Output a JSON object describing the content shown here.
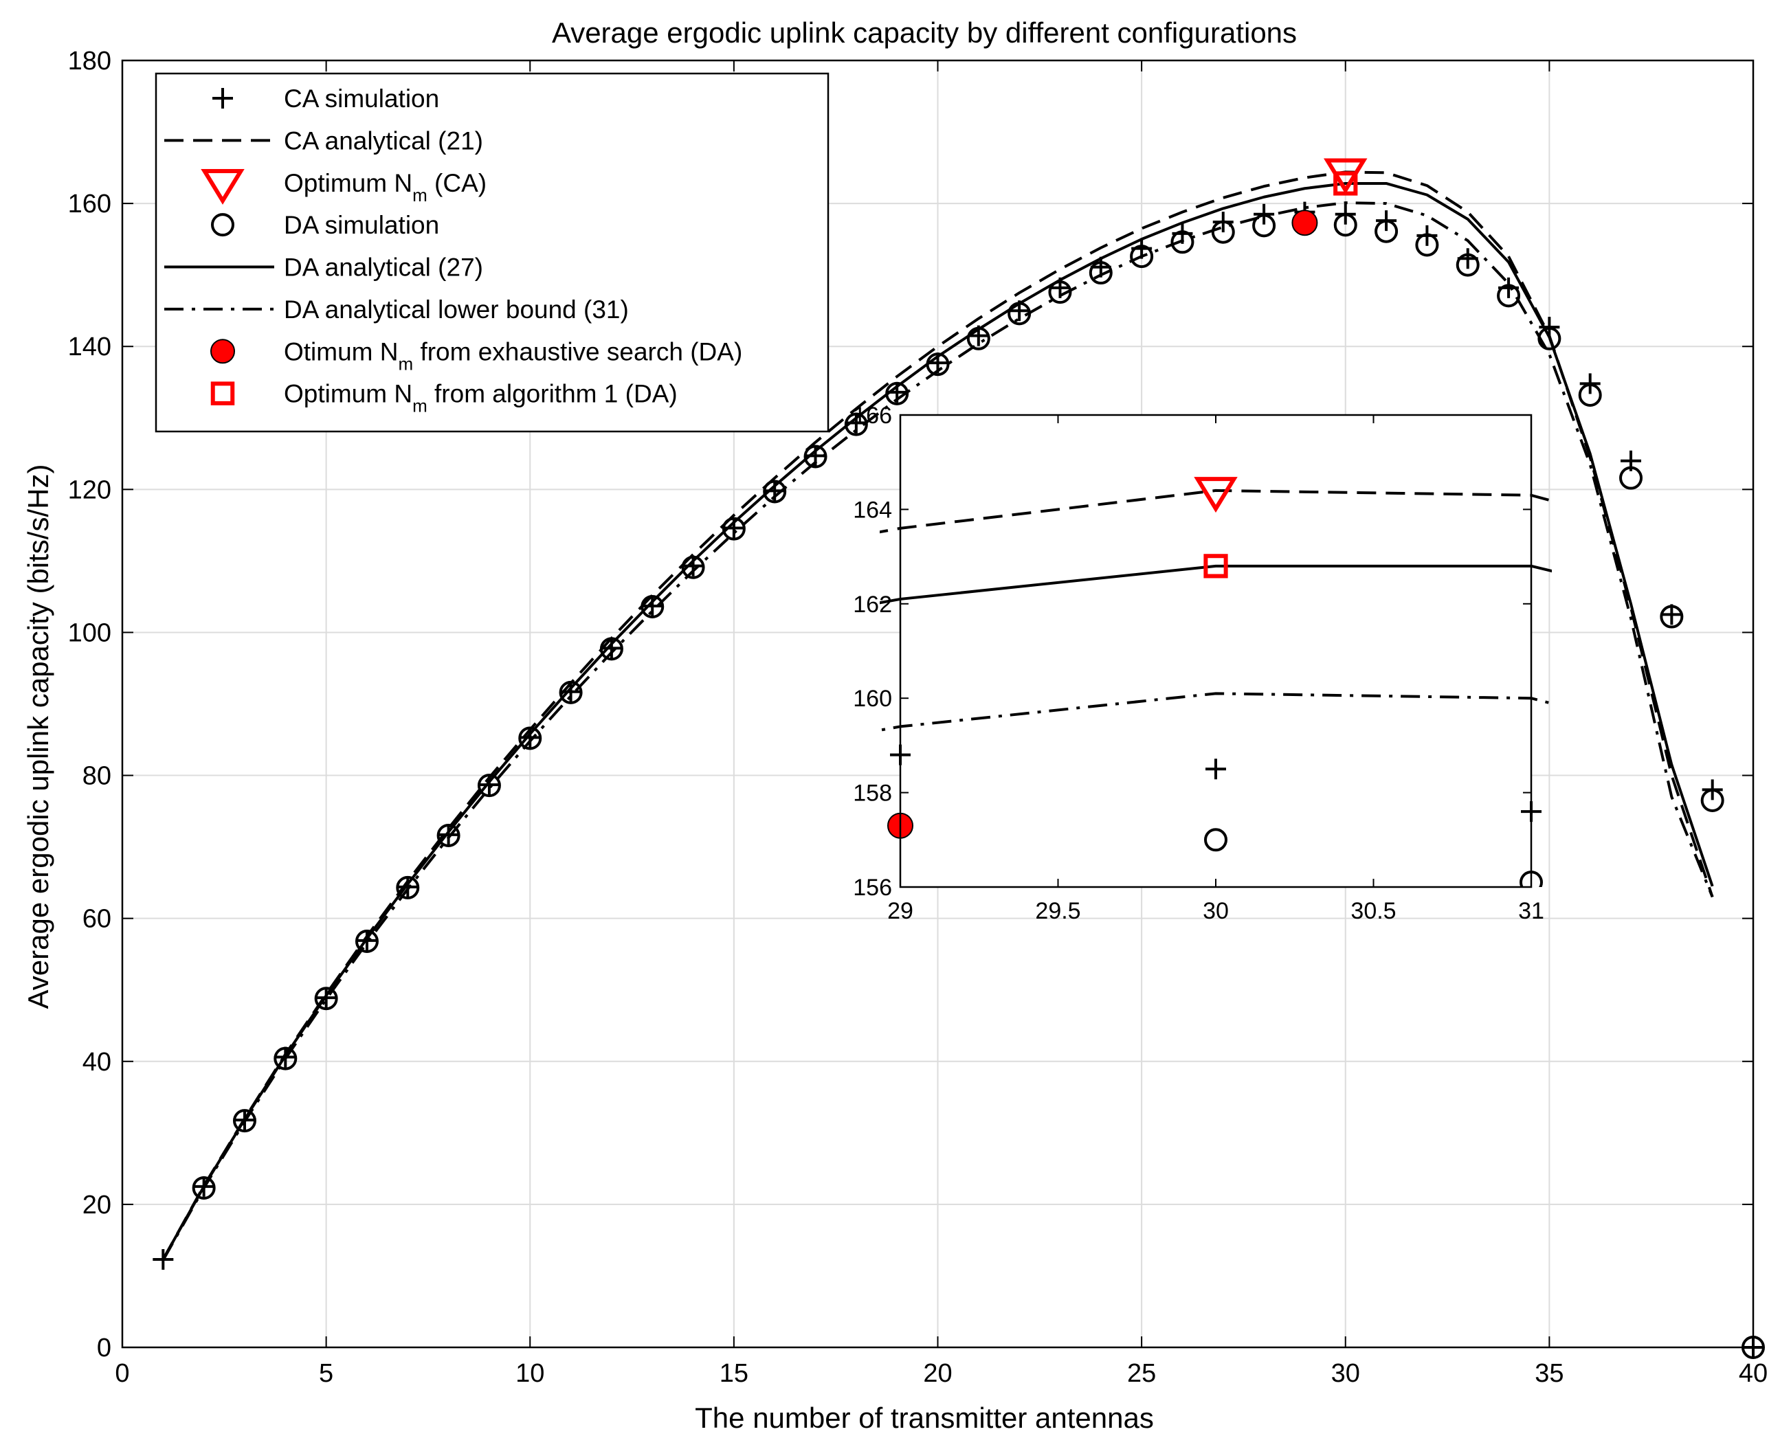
{
  "colors": {
    "red": "#ff0000",
    "black": "#000000",
    "grid": "#dcdcdc"
  },
  "chart_data": {
    "type": "line",
    "title": "Average ergodic uplink capacity by different configurations",
    "xlabel": "The number of transmitter antennas",
    "ylabel": "Average ergodic uplink capacity (bits/s/Hz)",
    "xlim": [
      0,
      40
    ],
    "ylim": [
      0,
      180
    ],
    "xticks": [
      0,
      5,
      10,
      15,
      20,
      25,
      30,
      35,
      40
    ],
    "yticks": [
      0,
      20,
      40,
      60,
      80,
      100,
      120,
      140,
      160,
      180
    ],
    "grid": true,
    "legend_position": "top-left",
    "legend": [
      {
        "key": "ca_sim",
        "label": "CA simulation"
      },
      {
        "key": "ca_an",
        "label": "CA analytical (21)"
      },
      {
        "key": "opt_ca",
        "label": "Optimum N",
        "sub": "m",
        "suffix": " (CA)"
      },
      {
        "key": "da_sim",
        "label": "DA simulation"
      },
      {
        "key": "da_an",
        "label": "DA analytical (27)"
      },
      {
        "key": "da_lb",
        "label": "DA analytical lower bound (31)"
      },
      {
        "key": "opt_ex",
        "label": "Otimum N",
        "sub": "m",
        "suffix": " from exhaustive search (DA)"
      },
      {
        "key": "opt_alg",
        "label": "Optimum N",
        "sub": "m",
        "suffix": " from algorithm 1 (DA)"
      }
    ],
    "series": [
      {
        "name": "CA simulation",
        "key": "ca_sim",
        "style": "plus",
        "x": [
          1,
          2,
          3,
          4,
          5,
          6,
          7,
          8,
          9,
          10,
          11,
          12,
          13,
          14,
          15,
          16,
          17,
          18,
          19,
          20,
          21,
          22,
          23,
          24,
          25,
          26,
          27,
          28,
          29,
          30,
          31,
          32,
          33,
          34,
          35,
          36,
          37,
          38,
          39,
          40
        ],
        "y": [
          12.3,
          22.5,
          31.8,
          40.6,
          48.9,
          56.9,
          64.4,
          71.7,
          78.7,
          85.3,
          91.7,
          97.8,
          103.7,
          109.3,
          114.6,
          119.8,
          124.7,
          129.3,
          133.6,
          137.7,
          141.5,
          145.0,
          148.2,
          151.1,
          153.7,
          155.8,
          157.4,
          158.5,
          158.8,
          158.5,
          157.6,
          155.5,
          152.3,
          148.2,
          142.7,
          134.8,
          124.0,
          102.5,
          78.0,
          0.0
        ]
      },
      {
        "name": "CA analytical (21)",
        "key": "ca_an",
        "style": "dashed",
        "x": [
          1,
          2,
          3,
          4,
          5,
          6,
          7,
          8,
          9,
          10,
          11,
          12,
          13,
          14,
          15,
          16,
          17,
          18,
          19,
          20,
          21,
          22,
          23,
          24,
          25,
          26,
          27,
          28,
          29,
          30,
          31,
          32,
          33,
          34,
          35,
          36,
          37,
          38,
          39
        ],
        "y": [
          12.3,
          22.6,
          32.0,
          41.0,
          49.4,
          57.5,
          65.2,
          72.6,
          79.7,
          86.4,
          92.9,
          99.2,
          105.2,
          110.9,
          116.4,
          121.6,
          126.6,
          131.3,
          135.8,
          140.0,
          143.9,
          147.5,
          150.8,
          153.8,
          156.5,
          158.8,
          160.8,
          162.4,
          163.6,
          164.4,
          164.3,
          162.5,
          158.8,
          152.6,
          141.5,
          124.5,
          103.5,
          80.0,
          63.0
        ]
      },
      {
        "name": "DA simulation",
        "key": "da_sim",
        "style": "circle",
        "x": [
          2,
          3,
          4,
          5,
          6,
          7,
          8,
          9,
          10,
          11,
          12,
          13,
          14,
          15,
          16,
          17,
          18,
          19,
          20,
          21,
          22,
          23,
          24,
          25,
          26,
          27,
          28,
          29,
          30,
          31,
          32,
          33,
          34,
          35,
          36,
          37,
          38,
          39,
          40
        ],
        "y": [
          22.3,
          31.7,
          40.4,
          48.8,
          56.8,
          64.3,
          71.6,
          78.6,
          85.2,
          91.6,
          97.7,
          103.6,
          109.1,
          114.5,
          119.7,
          124.6,
          129.1,
          133.4,
          137.5,
          141.1,
          144.6,
          147.6,
          150.3,
          152.6,
          154.6,
          156.0,
          156.9,
          157.3,
          157.0,
          156.1,
          154.2,
          151.4,
          147.1,
          141.1,
          133.2,
          121.6,
          102.2,
          76.5,
          0.0
        ]
      },
      {
        "name": "DA analytical (27)",
        "key": "da_an",
        "style": "solid",
        "x": [
          1,
          2,
          3,
          4,
          5,
          6,
          7,
          8,
          9,
          10,
          11,
          12,
          13,
          14,
          15,
          16,
          17,
          18,
          19,
          20,
          21,
          22,
          23,
          24,
          25,
          26,
          27,
          28,
          29,
          30,
          31,
          32,
          33,
          34,
          35,
          36,
          37,
          38,
          39
        ],
        "y": [
          12.3,
          22.5,
          31.9,
          40.8,
          49.2,
          57.2,
          64.8,
          72.1,
          79.1,
          85.8,
          92.2,
          98.4,
          104.3,
          110.0,
          115.4,
          120.5,
          125.4,
          130.0,
          134.4,
          138.6,
          142.4,
          146.0,
          149.3,
          152.3,
          155.0,
          157.3,
          159.3,
          160.9,
          162.1,
          162.8,
          162.8,
          161.2,
          157.8,
          151.8,
          141.3,
          125.0,
          104.0,
          81.5,
          64.5
        ]
      },
      {
        "name": "DA analytical lower bound (31)",
        "key": "da_lb",
        "style": "dashdot",
        "x": [
          1,
          2,
          3,
          4,
          5,
          6,
          7,
          8,
          9,
          10,
          11,
          12,
          13,
          14,
          15,
          16,
          17,
          18,
          19,
          20,
          21,
          22,
          23,
          24,
          25,
          26,
          27,
          28,
          29,
          30,
          31,
          32,
          33,
          34,
          35,
          36,
          37,
          38,
          39
        ],
        "y": [
          12.2,
          22.3,
          31.6,
          40.4,
          48.7,
          56.6,
          64.1,
          71.3,
          78.2,
          84.8,
          91.1,
          97.2,
          103.0,
          108.6,
          113.9,
          119.0,
          123.8,
          128.3,
          132.6,
          136.6,
          140.4,
          143.9,
          147.1,
          150.0,
          152.6,
          154.8,
          156.7,
          158.2,
          159.4,
          160.1,
          160.0,
          158.3,
          154.8,
          148.8,
          138.9,
          123.5,
          102.0,
          77.0,
          63.0
        ]
      },
      {
        "name": "Optimum N_m (CA)",
        "key": "opt_ca",
        "style": "triangle",
        "x": [
          30
        ],
        "y": [
          164.4
        ]
      },
      {
        "name": "Otimum N_m from exhaustive search (DA)",
        "key": "opt_ex",
        "style": "dot",
        "x": [
          29
        ],
        "y": [
          157.3
        ]
      },
      {
        "name": "Optimum N_m from algorithm 1 (DA)",
        "key": "opt_alg",
        "style": "square",
        "x": [
          30
        ],
        "y": [
          162.8
        ]
      }
    ],
    "inset": {
      "xlim": [
        29,
        31
      ],
      "ylim": [
        156,
        166
      ],
      "xticks": [
        29,
        29.5,
        30,
        30.5,
        31
      ],
      "yticks": [
        156,
        158,
        160,
        162,
        164,
        166
      ]
    }
  }
}
